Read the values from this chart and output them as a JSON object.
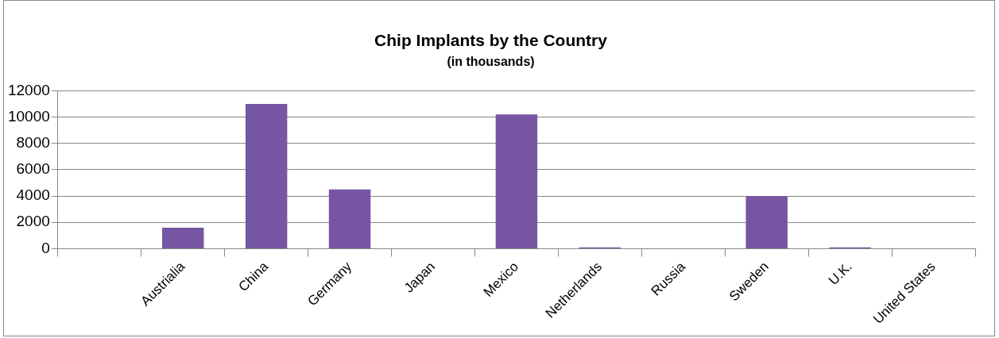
{
  "chart_data": {
    "type": "bar",
    "title": "Chip Implants by the Country",
    "subtitle": "(in thousands)",
    "categories": [
      null,
      "Austrialia",
      "China",
      "Germany",
      "Japan",
      "Mexico",
      "Netherlands",
      "Russia",
      "Sweden",
      "U.K.",
      "United States"
    ],
    "values": [
      0,
      1600,
      11000,
      4500,
      0,
      10200,
      100,
      0,
      4000,
      100,
      0
    ],
    "color": "#7656a3",
    "ylim": [
      0,
      12000
    ],
    "yticks": [
      0,
      2000,
      4000,
      6000,
      8000,
      10000,
      12000
    ],
    "grid": "y",
    "legend": false
  }
}
